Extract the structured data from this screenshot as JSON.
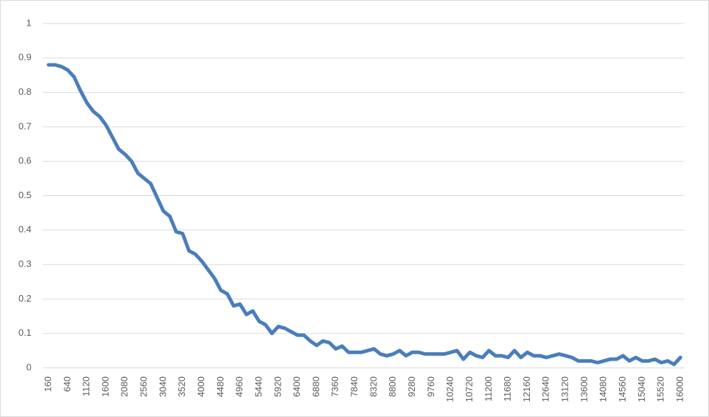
{
  "chart_data": {
    "type": "line",
    "categories": [
      "160",
      null,
      null,
      "640",
      null,
      null,
      "1120",
      null,
      null,
      "1600",
      null,
      null,
      "2080",
      null,
      null,
      "2560",
      null,
      null,
      "3040",
      null,
      null,
      "3520",
      null,
      null,
      "4000",
      null,
      null,
      "4480",
      null,
      null,
      "4960",
      null,
      null,
      "5440",
      null,
      null,
      "5920",
      null,
      null,
      "6400",
      null,
      null,
      "6880",
      null,
      null,
      "7360",
      null,
      null,
      "7840",
      null,
      null,
      "8320",
      null,
      null,
      "8800",
      null,
      null,
      "9280",
      null,
      null,
      "9760",
      null,
      null,
      "10240",
      null,
      null,
      "10720",
      null,
      null,
      "11200",
      null,
      null,
      "11680",
      null,
      null,
      "12160",
      null,
      null,
      "12640",
      null,
      null,
      "13120",
      null,
      null,
      "13600",
      null,
      null,
      "14080",
      null,
      null,
      "14560",
      null,
      null,
      "15040",
      null,
      null,
      "15520",
      null,
      null,
      "16000"
    ],
    "values": [
      0.88,
      0.88,
      0.875,
      0.865,
      0.845,
      0.805,
      0.77,
      0.745,
      0.73,
      0.705,
      0.67,
      0.635,
      0.62,
      0.6,
      0.565,
      0.55,
      0.535,
      0.495,
      0.455,
      0.44,
      0.395,
      0.39,
      0.34,
      0.33,
      0.31,
      0.285,
      0.26,
      0.225,
      0.215,
      0.18,
      0.185,
      0.155,
      0.165,
      0.135,
      0.125,
      0.1,
      0.12,
      0.115,
      0.105,
      0.095,
      0.095,
      0.078,
      0.065,
      0.078,
      0.073,
      0.055,
      0.063,
      0.045,
      0.045,
      0.045,
      0.05,
      0.055,
      0.04,
      0.035,
      0.04,
      0.05,
      0.035,
      0.045,
      0.045,
      0.04,
      0.04,
      0.04,
      0.04,
      0.045,
      0.05,
      0.025,
      0.045,
      0.035,
      0.03,
      0.05,
      0.035,
      0.035,
      0.03,
      0.05,
      0.03,
      0.045,
      0.035,
      0.035,
      0.03,
      0.035,
      0.04,
      0.035,
      0.03,
      0.02,
      0.02,
      0.02,
      0.015,
      0.02,
      0.025,
      0.025,
      0.035,
      0.02,
      0.03,
      0.02,
      0.02,
      0.025,
      0.015,
      0.02,
      0.01,
      0.03
    ],
    "color": "#4a7ebb",
    "ylim": [
      0,
      1
    ],
    "yticks": [
      0,
      0.1,
      0.2,
      0.3,
      0.4,
      0.5,
      0.6,
      0.7,
      0.8,
      0.9,
      1
    ],
    "grid": true
  }
}
